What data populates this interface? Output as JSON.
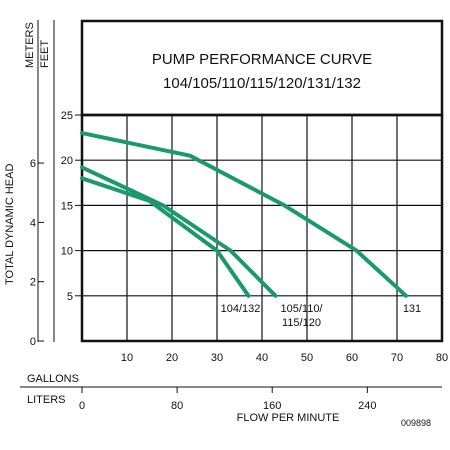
{
  "chart_data": {
    "type": "line",
    "title": "PUMP PERFORMANCE CURVE",
    "subtitle": "104/105/110/115/120/131/132",
    "ylabel": "TOTAL DYNAMIC HEAD",
    "left_units": [
      "METERS",
      "FEET"
    ],
    "xlabel": "FLOW PER MINUTE",
    "x_units": [
      "GALLONS",
      "LITERS"
    ],
    "xlim": [
      0,
      80
    ],
    "ylim_feet": [
      0,
      25
    ],
    "x_ticks_gallons": [
      "10",
      "20",
      "30",
      "40",
      "50",
      "60",
      "70",
      "80"
    ],
    "x_ticks_liters": [
      "0",
      "80",
      "160",
      "240"
    ],
    "y_ticks_feet": [
      "5",
      "10",
      "15",
      "20",
      "25"
    ],
    "y_ticks_meters": [
      "0",
      "2",
      "4",
      "6"
    ],
    "figure_id": "009898",
    "grid": true,
    "series": [
      {
        "name": "104/132",
        "color": "#1a9a6a",
        "x": [
          0,
          15,
          30,
          37
        ],
        "y": [
          18,
          15.5,
          10,
          5
        ]
      },
      {
        "name": "105/110/115/120",
        "color": "#1a9a6a",
        "x": [
          0,
          18,
          33,
          43
        ],
        "y": [
          19.2,
          15,
          10,
          5
        ]
      },
      {
        "name": "131",
        "color": "#1a9a6a",
        "x": [
          0,
          24,
          45,
          61,
          72
        ],
        "y": [
          23,
          20.5,
          15,
          10,
          5
        ]
      }
    ],
    "series_labels": [
      {
        "lines": [
          "104/132"
        ]
      },
      {
        "lines": [
          "105/110/",
          "115/120"
        ]
      },
      {
        "lines": [
          "131"
        ]
      }
    ]
  }
}
